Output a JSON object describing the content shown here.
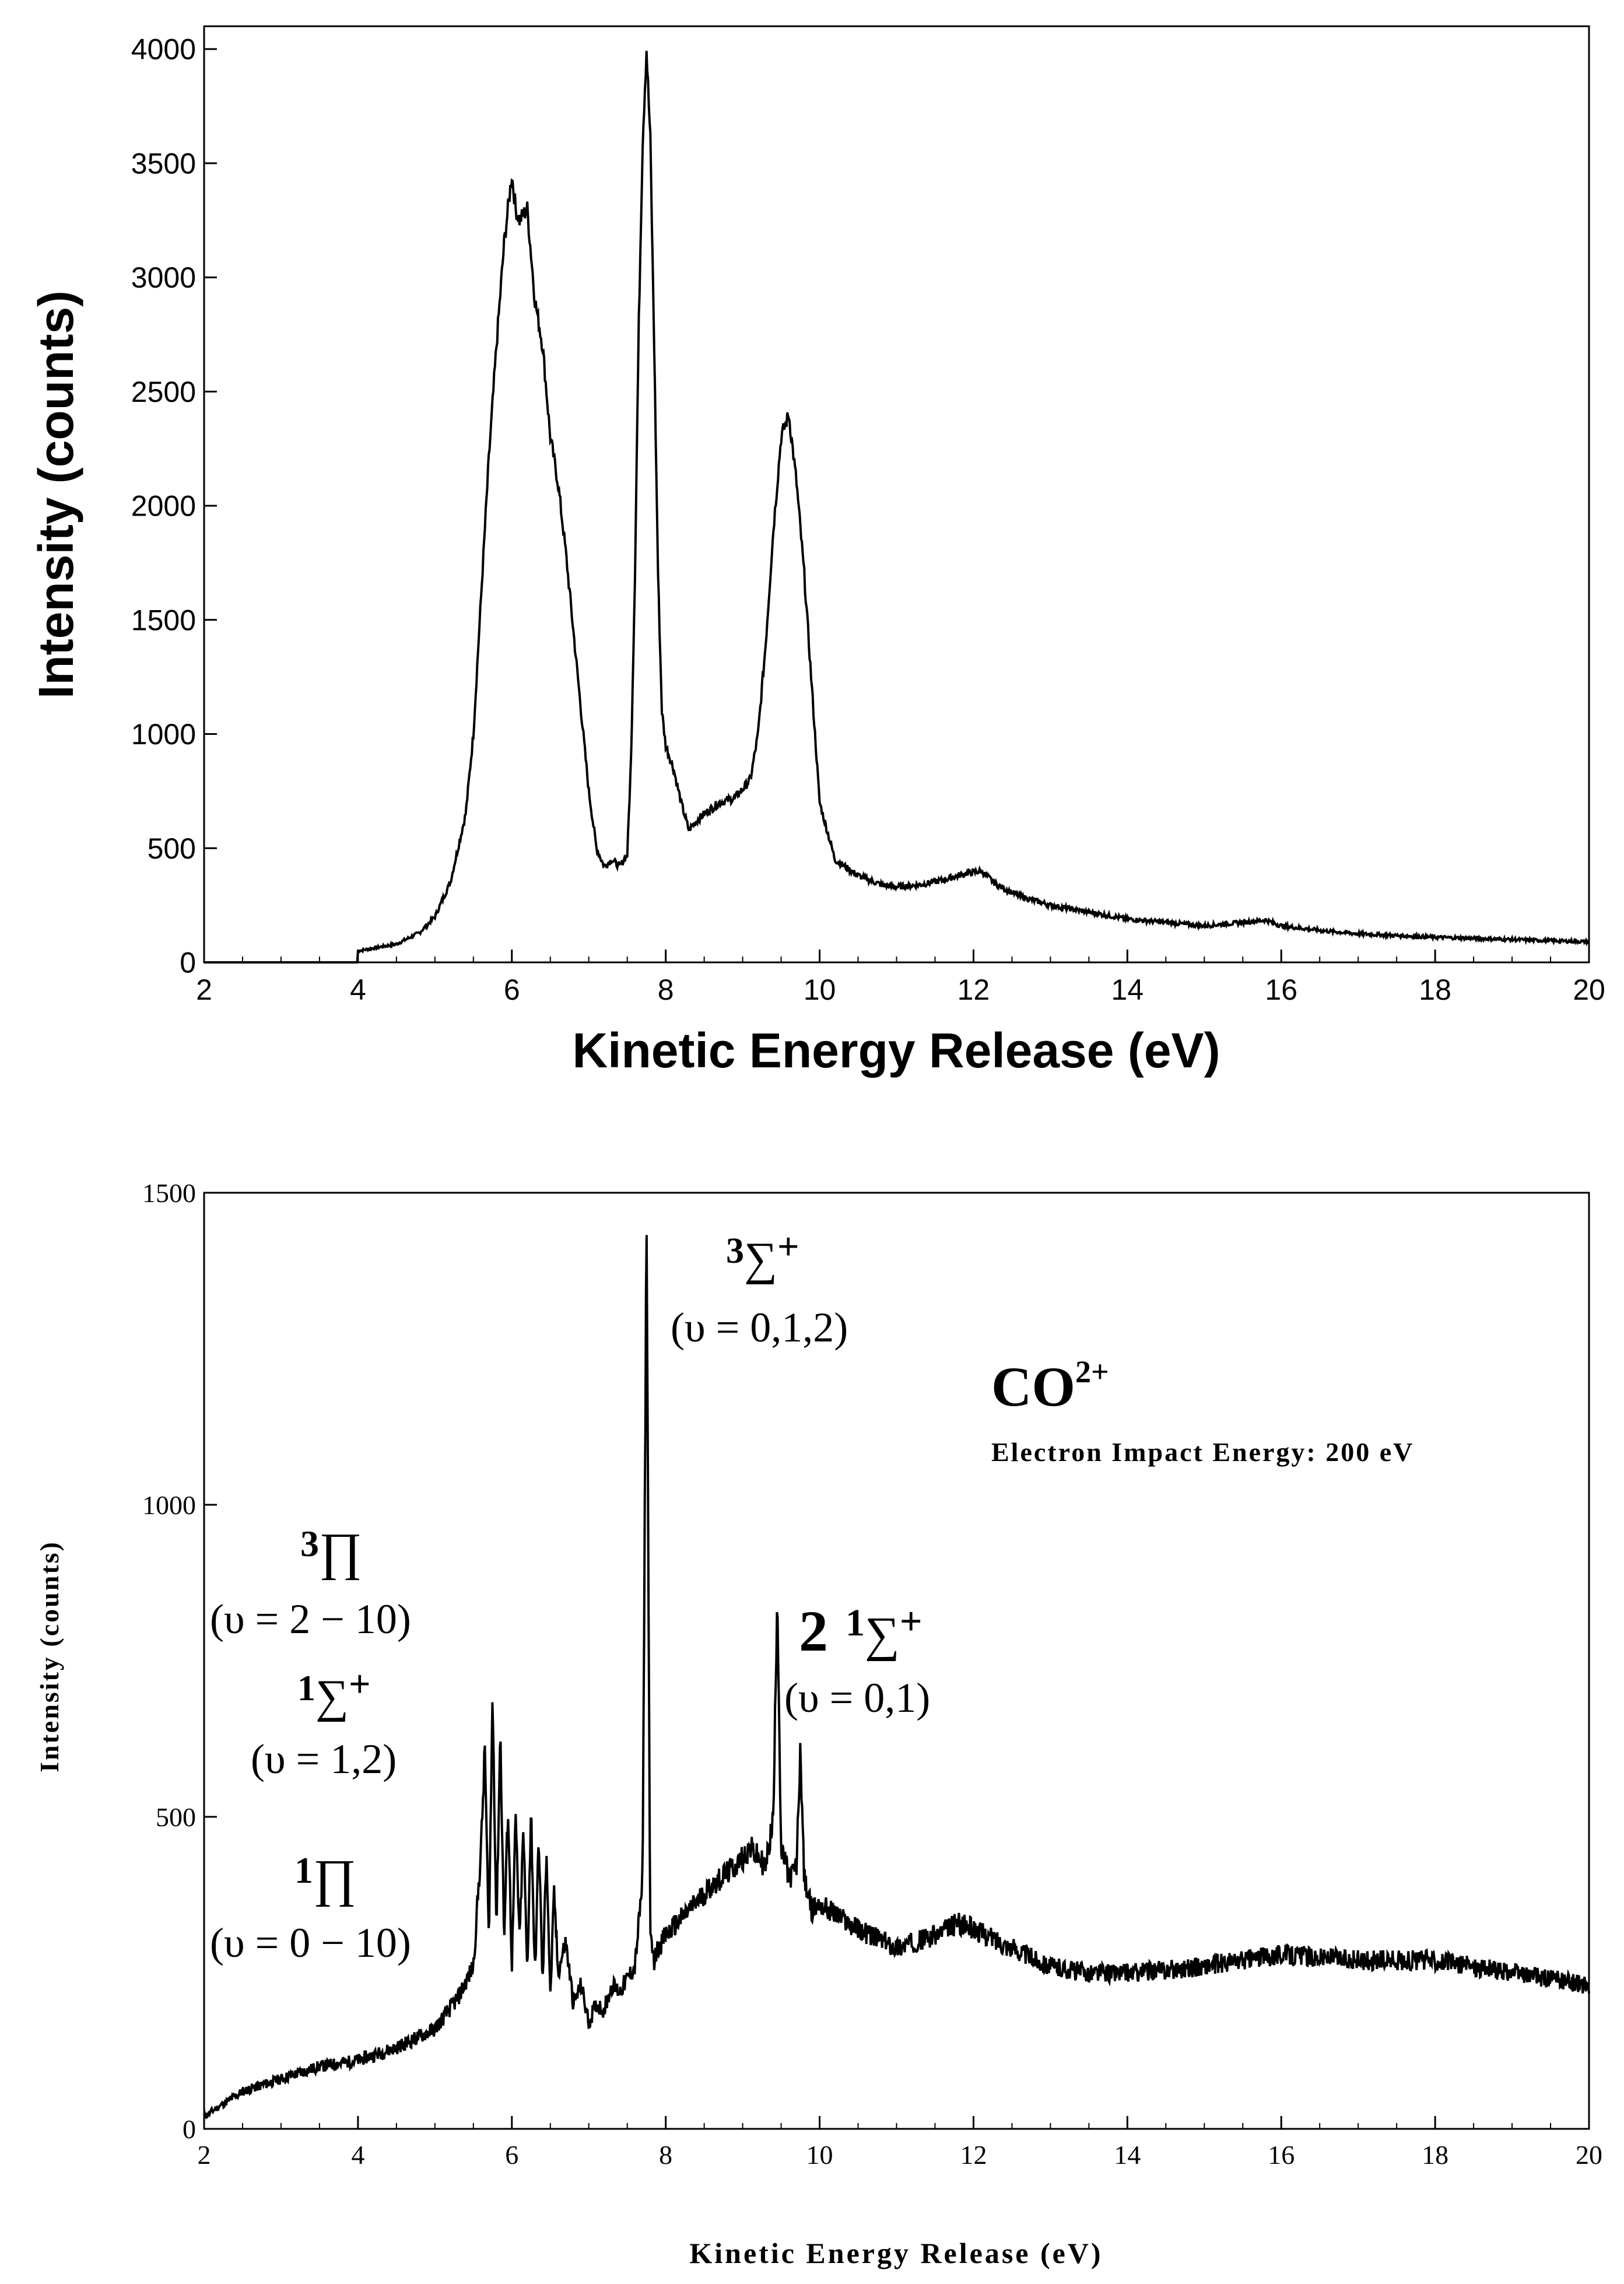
{
  "chart_data": [
    {
      "type": "line",
      "title": "",
      "xlabel": "Kinetic Energy Release (eV)",
      "ylabel": "Intensity (counts)",
      "xlim": [
        2,
        20
      ],
      "ylim": [
        0,
        4100
      ],
      "xticks": [
        2,
        4,
        6,
        8,
        10,
        12,
        14,
        16,
        18,
        20
      ],
      "yticks": [
        0,
        500,
        1000,
        1500,
        2000,
        2500,
        3000,
        3500,
        4000
      ],
      "series": [
        {
          "name": "spectrum",
          "x": [
            2.0,
            3.99,
            4.0,
            4.5,
            4.8,
            5.0,
            5.2,
            5.4,
            5.5,
            5.6,
            5.7,
            5.8,
            5.9,
            6.0,
            6.05,
            6.1,
            6.2,
            6.3,
            6.4,
            6.5,
            6.6,
            6.7,
            6.8,
            6.9,
            7.0,
            7.1,
            7.2,
            7.3,
            7.4,
            7.5,
            7.55,
            7.6,
            7.65,
            7.7,
            7.75,
            7.8,
            7.85,
            7.9,
            7.95,
            8.0,
            8.05,
            8.1,
            8.2,
            8.3,
            8.4,
            8.5,
            8.7,
            8.9,
            9.0,
            9.1,
            9.2,
            9.3,
            9.4,
            9.5,
            9.6,
            9.7,
            9.8,
            9.9,
            10.0,
            10.2,
            10.5,
            10.8,
            11.0,
            11.3,
            11.6,
            11.9,
            12.1,
            12.3,
            12.6,
            13.0,
            13.5,
            14.0,
            14.5,
            15.0,
            15.5,
            15.8,
            16.0,
            16.5,
            17.0,
            18.0,
            19.0,
            20.0
          ],
          "values": [
            0,
            0,
            50,
            80,
            130,
            200,
            350,
            650,
            1000,
            1600,
            2200,
            2700,
            3150,
            3450,
            3300,
            3250,
            3300,
            2900,
            2700,
            2300,
            2100,
            1800,
            1450,
            1100,
            750,
            500,
            420,
            450,
            420,
            470,
            900,
            1700,
            2800,
            3600,
            4000,
            3600,
            2700,
            1700,
            1100,
            950,
            900,
            850,
            700,
            580,
            620,
            650,
            700,
            720,
            760,
            800,
            1000,
            1400,
            1900,
            2300,
            2400,
            2100,
            1700,
            1200,
            700,
            450,
            380,
            340,
            330,
            340,
            360,
            390,
            400,
            340,
            290,
            250,
            220,
            190,
            175,
            160,
            175,
            185,
            160,
            140,
            125,
            110,
            100,
            90
          ]
        }
      ]
    },
    {
      "type": "line",
      "title": "",
      "xlabel": "Kinetic Energy Release (eV)",
      "ylabel": "Intensity (counts)",
      "xlim": [
        2,
        20
      ],
      "ylim": [
        0,
        1500
      ],
      "xticks": [
        2,
        4,
        6,
        8,
        10,
        12,
        14,
        16,
        18,
        20
      ],
      "yticks": [
        0,
        500,
        1000,
        1500
      ],
      "series": [
        {
          "name": "spectrum",
          "x": [
            2.0,
            2.5,
            3.0,
            3.5,
            4.0,
            4.5,
            5.0,
            5.3,
            5.5,
            5.6,
            5.65,
            5.7,
            5.75,
            5.8,
            5.85,
            5.9,
            5.95,
            6.0,
            6.05,
            6.1,
            6.15,
            6.2,
            6.25,
            6.3,
            6.35,
            6.4,
            6.45,
            6.5,
            6.55,
            6.6,
            6.7,
            6.8,
            6.9,
            7.0,
            7.1,
            7.2,
            7.3,
            7.4,
            7.5,
            7.6,
            7.7,
            7.75,
            7.8,
            7.85,
            7.9,
            8.0,
            8.3,
            8.6,
            8.9,
            9.1,
            9.3,
            9.4,
            9.45,
            9.5,
            9.55,
            9.6,
            9.7,
            9.75,
            9.8,
            9.9,
            10.0,
            10.5,
            11.0,
            11.5,
            11.8,
            12.0,
            12.5,
            13.0,
            13.5,
            14.0,
            15.0,
            16.0,
            17.0,
            18.0,
            19.0,
            20.0
          ],
          "values": [
            20,
            60,
            80,
            100,
            110,
            130,
            160,
            210,
            260,
            450,
            610,
            300,
            700,
            320,
            640,
            300,
            520,
            260,
            500,
            300,
            480,
            250,
            510,
            240,
            470,
            230,
            450,
            210,
            380,
            250,
            300,
            200,
            230,
            170,
            200,
            190,
            230,
            220,
            240,
            260,
            400,
            1470,
            300,
            270,
            290,
            310,
            350,
            390,
            420,
            450,
            420,
            500,
            870,
            440,
            430,
            400,
            420,
            610,
            400,
            350,
            360,
            320,
            290,
            310,
            330,
            320,
            290,
            260,
            250,
            250,
            260,
            280,
            270,
            270,
            250,
            230
          ]
        }
      ],
      "annotations": [
        {
          "state_mult": "3",
          "symbol": "∑",
          "suffix": "+",
          "vib": "(υ = 0,1,2)",
          "x": 7.8,
          "y": 1470
        },
        {
          "state_mult": "3",
          "symbol": "∏",
          "suffix": "",
          "vib": "(υ = 2 − 10)",
          "x": 5.8,
          "y": 700
        },
        {
          "state_mult": "1",
          "symbol": "∑",
          "suffix": "+",
          "vib": "(υ = 1,2)",
          "x": 5.6,
          "y": 610
        },
        {
          "state_mult": "1",
          "symbol": "∏",
          "suffix": "",
          "vib": "(υ = 0 − 10)",
          "x": 5.7,
          "y": 500
        },
        {
          "prefix": "2",
          "state_mult": "1",
          "symbol": "∑",
          "suffix": "+",
          "vib": "(υ = 0,1)",
          "x": 9.45,
          "y": 870
        }
      ],
      "species": {
        "base": "CO",
        "charge": "2+"
      },
      "subtitle": "Electron Impact Energy: 200 eV"
    }
  ]
}
